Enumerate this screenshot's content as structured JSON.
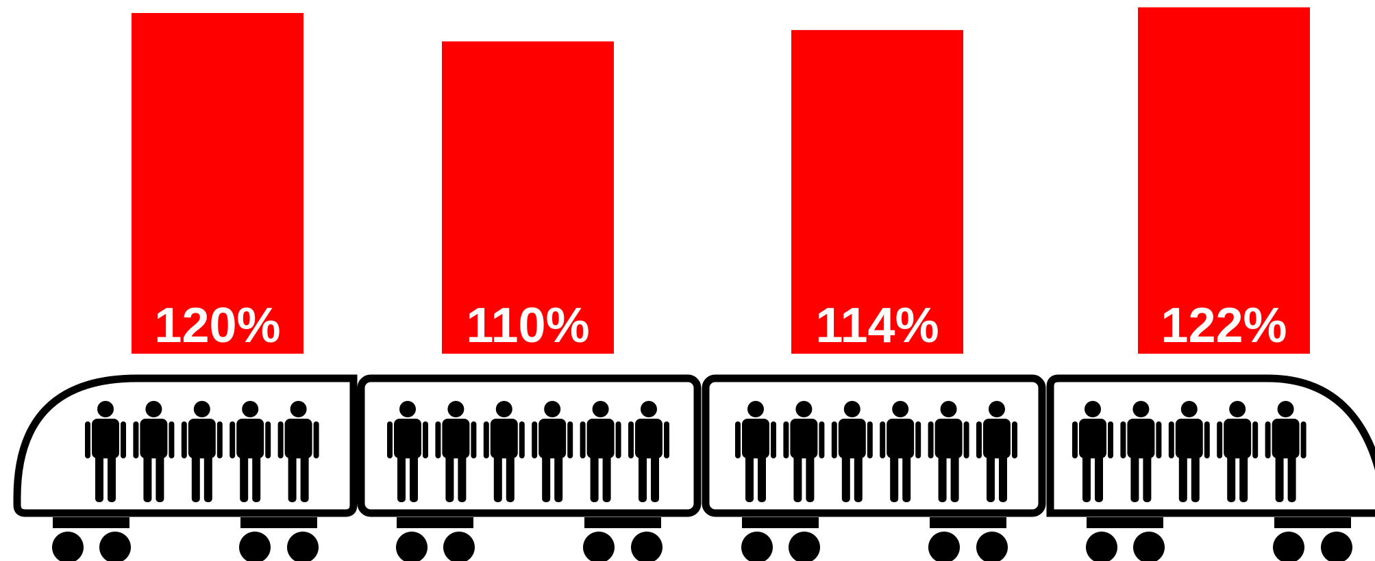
{
  "chart_data": {
    "type": "bar",
    "values": [
      120,
      110,
      114,
      122
    ],
    "value_labels": [
      "120%",
      "110%",
      "114%",
      "122%"
    ],
    "color": "#ff0000"
  }
}
